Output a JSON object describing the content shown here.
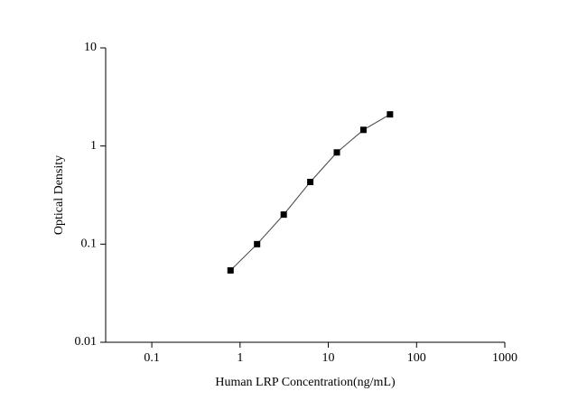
{
  "chart_data": {
    "type": "scatter-line",
    "x_label": "Human LRP Concentration(ng/mL)",
    "y_label": "Optical Density",
    "x": [
      0.78,
      1.56,
      3.125,
      6.25,
      12.5,
      25,
      50
    ],
    "series": [
      {
        "color": "#000000",
        "values": [
          0.054,
          0.1,
          0.2,
          0.43,
          0.86,
          1.46,
          2.1
        ]
      }
    ],
    "xlim": [
      0.03,
      1000
    ],
    "ylim": [
      0.01,
      10
    ],
    "xticks": [
      0.1,
      1,
      10,
      100,
      1000
    ],
    "yticks": [
      0.01,
      0.1,
      1,
      10
    ],
    "xscale": "log",
    "yscale": "log",
    "grid": false
  }
}
